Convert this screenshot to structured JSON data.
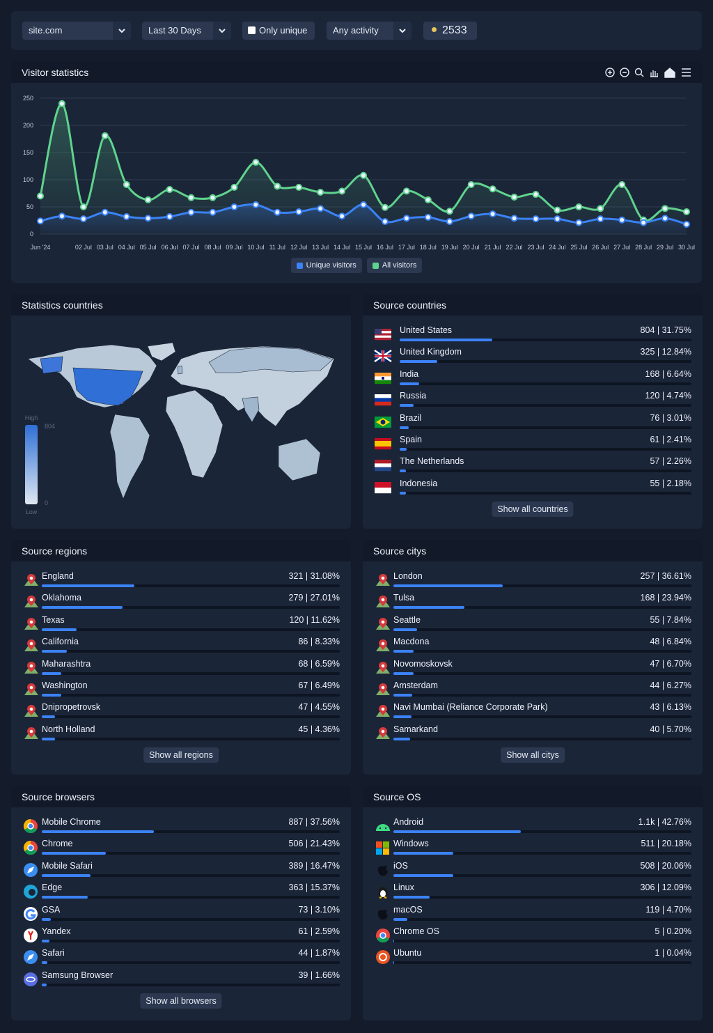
{
  "filters": {
    "site": "site.com",
    "period": "Last 30 Days",
    "unique": "Only unique",
    "activity": "Any activity",
    "total": 2533
  },
  "chart_data": {
    "type": "line",
    "title": "Visitor statistics",
    "categories": [
      "Jun '24",
      null,
      "02 Jul",
      "03 Jul",
      "04 Jul",
      "05 Jul",
      "06 Jul",
      "07 Jul",
      "08 Jul",
      "09 Jul",
      "10 Jul",
      "11 Jul",
      "12 Jul",
      "13 Jul",
      "14 Jul",
      "15 Jul",
      "16 Jul",
      "17 Jul",
      "18 Jul",
      "19 Jul",
      "20 Jul",
      "21 Jul",
      "22 Jul",
      "23 Jul",
      "24 Jul",
      "25 Jul",
      "26 Jul",
      "27 Jul",
      "28 Jul",
      "29 Jul",
      "30 Jul"
    ],
    "series": [
      {
        "name": "Unique visitors",
        "color": "#3b82f6",
        "values": [
          24,
          33,
          28,
          40,
          32,
          29,
          32,
          40,
          40,
          50,
          54,
          40,
          41,
          47,
          33,
          54,
          23,
          29,
          31,
          23,
          33,
          37,
          29,
          28,
          28,
          21,
          28,
          26,
          21,
          29,
          18
        ]
      },
      {
        "name": "All visitors",
        "color": "#5fd38d",
        "values": [
          70,
          240,
          50,
          181,
          91,
          63,
          82,
          67,
          67,
          86,
          132,
          88,
          86,
          77,
          79,
          108,
          49,
          79,
          63,
          42,
          91,
          83,
          68,
          73,
          44,
          50,
          47,
          91,
          26,
          47,
          41
        ]
      }
    ],
    "ylim": [
      0,
      250
    ],
    "yticks": [
      0,
      50,
      100,
      150,
      200,
      250
    ],
    "grid": true,
    "legend": "bottom"
  },
  "map": {
    "title": "Statistics countries",
    "legend": {
      "high": "High",
      "low": "Low",
      "max": 804,
      "min": 0
    }
  },
  "countries": {
    "title": "Source countries",
    "button": "Show all countries",
    "items": [
      {
        "name": "United States",
        "value": 31.75,
        "value_label": "804 | 31.75%"
      },
      {
        "name": "United Kingdom",
        "value": 12.84,
        "value_label": "325 | 12.84%"
      },
      {
        "name": "India",
        "value": 6.64,
        "value_label": "168 | 6.64%"
      },
      {
        "name": "Russia",
        "value": 4.74,
        "value_label": "120 | 4.74%"
      },
      {
        "name": "Brazil",
        "value": 3.01,
        "value_label": "76 | 3.01%"
      },
      {
        "name": "Spain",
        "value": 2.41,
        "value_label": "61 | 2.41%"
      },
      {
        "name": "The Netherlands",
        "value": 2.26,
        "value_label": "57 | 2.26%"
      },
      {
        "name": "Indonesia",
        "value": 2.18,
        "value_label": "55 | 2.18%"
      }
    ]
  },
  "regions": {
    "title": "Source regions",
    "button": "Show all regions",
    "items": [
      {
        "name": "England",
        "value": 31.08,
        "value_label": "321 | 31.08%"
      },
      {
        "name": "Oklahoma",
        "value": 27.01,
        "value_label": "279 | 27.01%"
      },
      {
        "name": "Texas",
        "value": 11.62,
        "value_label": "120 | 11.62%"
      },
      {
        "name": "California",
        "value": 8.33,
        "value_label": "86 | 8.33%"
      },
      {
        "name": "Maharashtra",
        "value": 6.59,
        "value_label": "68 | 6.59%"
      },
      {
        "name": "Washington",
        "value": 6.49,
        "value_label": "67 | 6.49%"
      },
      {
        "name": "Dnipropetrovsk",
        "value": 4.55,
        "value_label": "47 | 4.55%"
      },
      {
        "name": "North Holland",
        "value": 4.36,
        "value_label": "45 | 4.36%"
      }
    ]
  },
  "cities": {
    "title": "Source citys",
    "button": "Show all citys",
    "items": [
      {
        "name": "London",
        "value": 36.61,
        "value_label": "257 | 36.61%"
      },
      {
        "name": "Tulsa",
        "value": 23.94,
        "value_label": "168 | 23.94%"
      },
      {
        "name": "Seattle",
        "value": 7.84,
        "value_label": "55 | 7.84%"
      },
      {
        "name": "Macdona",
        "value": 6.84,
        "value_label": "48 | 6.84%"
      },
      {
        "name": "Novomoskovsk",
        "value": 6.7,
        "value_label": "47 | 6.70%"
      },
      {
        "name": "Amsterdam",
        "value": 6.27,
        "value_label": "44 | 6.27%"
      },
      {
        "name": "Navi Mumbai (Reliance Corporate Park)",
        "value": 6.13,
        "value_label": "43 | 6.13%"
      },
      {
        "name": "Samarkand",
        "value": 5.7,
        "value_label": "40 | 5.70%"
      }
    ]
  },
  "browsers": {
    "title": "Source browsers",
    "button": "Show all browsers",
    "items": [
      {
        "name": "Mobile Chrome",
        "value": 37.56,
        "value_label": "887 | 37.56%"
      },
      {
        "name": "Chrome",
        "value": 21.43,
        "value_label": "506 | 21.43%"
      },
      {
        "name": "Mobile Safari",
        "value": 16.47,
        "value_label": "389 | 16.47%"
      },
      {
        "name": "Edge",
        "value": 15.37,
        "value_label": "363 | 15.37%"
      },
      {
        "name": "GSA",
        "value": 3.1,
        "value_label": "73 | 3.10%"
      },
      {
        "name": "Yandex",
        "value": 2.59,
        "value_label": "61 | 2.59%"
      },
      {
        "name": "Safari",
        "value": 1.87,
        "value_label": "44 | 1.87%"
      },
      {
        "name": "Samsung Browser",
        "value": 1.66,
        "value_label": "39 | 1.66%"
      }
    ]
  },
  "os": {
    "title": "Source OS",
    "items": [
      {
        "name": "Android",
        "value": 42.76,
        "value_label": "1.1k | 42.76%"
      },
      {
        "name": "Windows",
        "value": 20.18,
        "value_label": "511 | 20.18%"
      },
      {
        "name": "iOS",
        "value": 20.06,
        "value_label": "508 | 20.06%"
      },
      {
        "name": "Linux",
        "value": 12.09,
        "value_label": "306 | 12.09%"
      },
      {
        "name": "macOS",
        "value": 4.7,
        "value_label": "119 | 4.70%"
      },
      {
        "name": "Chrome OS",
        "value": 0.2,
        "value_label": "5 | 0.20%"
      },
      {
        "name": "Ubuntu",
        "value": 0.04,
        "value_label": "1 | 0.04%"
      }
    ]
  }
}
